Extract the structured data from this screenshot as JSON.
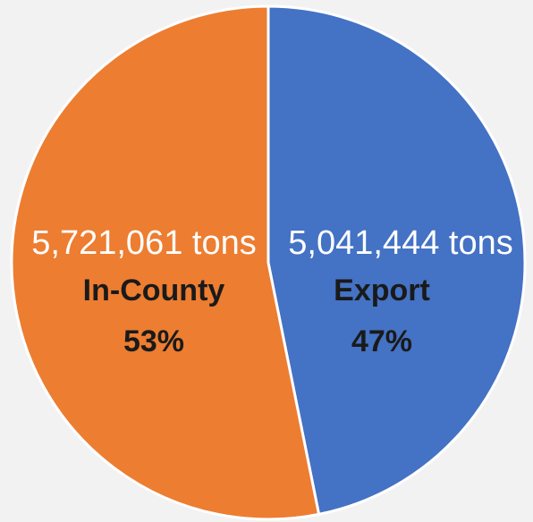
{
  "chart_data": {
    "type": "pie",
    "title": "",
    "slices": [
      {
        "name": "Export",
        "value": 5041444,
        "value_label": "5,041,444 tons",
        "percent_label": "47%",
        "color": "#4472c4"
      },
      {
        "name": "In-County",
        "value": 5721061,
        "value_label": "5,721,061 tons",
        "percent_label": "53%",
        "color": "#ed7d31"
      }
    ],
    "start_angle": "12 o'clock",
    "direction": "clockwise",
    "slice_border_color": "#ffffff",
    "background_color": "#f2f2f2"
  }
}
